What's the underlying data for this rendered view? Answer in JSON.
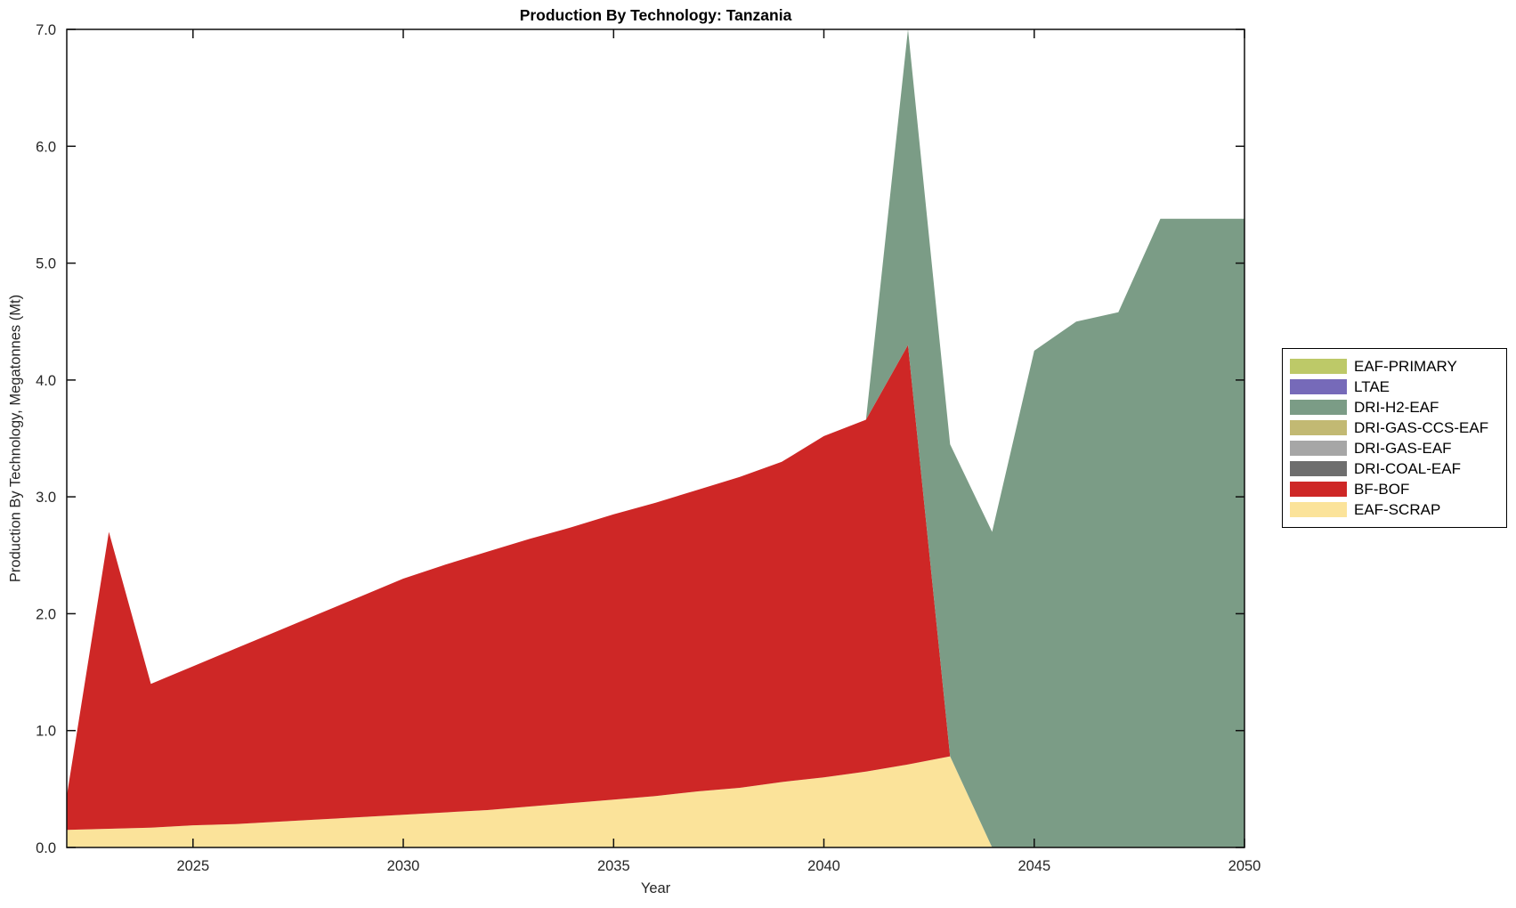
{
  "title": "Production By Technology: Tanzania",
  "axes": {
    "xlabel": "Year",
    "ylabel": "Production By Technology, Megatonnes (Mt)"
  },
  "legend": {
    "position": "right-outside",
    "items": [
      {
        "label": "EAF-PRIMARY",
        "color": "#bdc968"
      },
      {
        "label": "LTAE",
        "color": "#766ab9"
      },
      {
        "label": "DRI-H2-EAF",
        "color": "#7b9c86"
      },
      {
        "label": "DRI-GAS-CCS-EAF",
        "color": "#c2b973"
      },
      {
        "label": "DRI-GAS-EAF",
        "color": "#a6a6a6"
      },
      {
        "label": "DRI-COAL-EAF",
        "color": "#6e6e6e"
      },
      {
        "label": "BF-BOF",
        "color": "#ce2726"
      },
      {
        "label": "EAF-SCRAP",
        "color": "#fbe39a"
      }
    ]
  },
  "chart_data": {
    "type": "area",
    "stacked": true,
    "title": "Production By Technology: Tanzania",
    "xlabel": "Year",
    "ylabel": "Production By Technology, Megatonnes (Mt)",
    "xlim": [
      2022,
      2050
    ],
    "ylim": [
      0,
      7
    ],
    "grid": false,
    "x": [
      2022,
      2023,
      2024,
      2025,
      2026,
      2027,
      2028,
      2029,
      2030,
      2031,
      2032,
      2033,
      2034,
      2035,
      2036,
      2037,
      2038,
      2039,
      2040,
      2041,
      2042,
      2043,
      2044,
      2045,
      2046,
      2047,
      2048,
      2049,
      2050
    ],
    "xticks": [
      {
        "value": 2025,
        "label": "2025"
      },
      {
        "value": 2030,
        "label": "2030"
      },
      {
        "value": 2035,
        "label": "2035"
      },
      {
        "value": 2040,
        "label": "2040"
      },
      {
        "value": 2045,
        "label": "2045"
      },
      {
        "value": 2050,
        "label": "2050"
      }
    ],
    "yticks": [
      {
        "value": 0,
        "label": "0.0"
      },
      {
        "value": 1,
        "label": "1.0"
      },
      {
        "value": 2,
        "label": "2.0"
      },
      {
        "value": 3,
        "label": "3.0"
      },
      {
        "value": 4,
        "label": "4.0"
      },
      {
        "value": 5,
        "label": "5.0"
      },
      {
        "value": 6,
        "label": "6.0"
      },
      {
        "value": 7,
        "label": "7.0"
      }
    ],
    "stack_order": [
      "EAF-SCRAP",
      "BF-BOF",
      "DRI-COAL-EAF",
      "DRI-GAS-EAF",
      "DRI-GAS-CCS-EAF",
      "DRI-H2-EAF",
      "LTAE",
      "EAF-PRIMARY"
    ],
    "series": [
      {
        "name": "EAF-SCRAP",
        "color": "#fbe39a",
        "values": [
          0.15,
          0.16,
          0.17,
          0.19,
          0.2,
          0.22,
          0.24,
          0.26,
          0.28,
          0.3,
          0.32,
          0.35,
          0.38,
          0.41,
          0.44,
          0.48,
          0.51,
          0.56,
          0.6,
          0.65,
          0.71,
          0.78,
          0,
          0,
          0,
          0,
          0,
          0,
          0
        ]
      },
      {
        "name": "BF-BOF",
        "color": "#ce2726",
        "values": [
          0.29,
          2.54,
          1.23,
          1.36,
          1.5,
          1.63,
          1.76,
          1.89,
          2.02,
          2.12,
          2.21,
          2.29,
          2.36,
          2.44,
          2.51,
          2.58,
          2.66,
          2.74,
          2.92,
          3.01,
          3.59,
          0,
          0,
          0,
          0,
          0,
          0,
          0,
          0
        ]
      },
      {
        "name": "DRI-COAL-EAF",
        "color": "#6e6e6e",
        "values": [
          0,
          0,
          0,
          0,
          0,
          0,
          0,
          0,
          0,
          0,
          0,
          0,
          0,
          0,
          0,
          0,
          0,
          0,
          0,
          0,
          0,
          0,
          0,
          0,
          0,
          0,
          0,
          0,
          0
        ]
      },
      {
        "name": "DRI-GAS-EAF",
        "color": "#a6a6a6",
        "values": [
          0,
          0,
          0,
          0,
          0,
          0,
          0,
          0,
          0,
          0,
          0,
          0,
          0,
          0,
          0,
          0,
          0,
          0,
          0,
          0,
          0,
          0,
          0,
          0,
          0,
          0,
          0,
          0,
          0
        ]
      },
      {
        "name": "DRI-GAS-CCS-EAF",
        "color": "#c2b973",
        "values": [
          0,
          0,
          0,
          0,
          0,
          0,
          0,
          0,
          0,
          0,
          0,
          0,
          0,
          0,
          0,
          0,
          0,
          0,
          0,
          0,
          0,
          0,
          0,
          0,
          0,
          0,
          0,
          0,
          0
        ]
      },
      {
        "name": "DRI-H2-EAF",
        "color": "#7b9c86",
        "values": [
          0,
          0,
          0,
          0,
          0,
          0,
          0,
          0,
          0,
          0,
          0,
          0,
          0,
          0,
          0,
          0,
          0,
          0,
          0,
          0,
          2.7,
          2.67,
          2.7,
          4.25,
          4.5,
          4.58,
          5.38,
          5.38,
          5.38
        ]
      },
      {
        "name": "LTAE",
        "color": "#766ab9",
        "values": [
          0,
          0,
          0,
          0,
          0,
          0,
          0,
          0,
          0,
          0,
          0,
          0,
          0,
          0,
          0,
          0,
          0,
          0,
          0,
          0,
          0,
          0,
          0,
          0,
          0,
          0,
          0,
          0,
          0
        ]
      },
      {
        "name": "EAF-PRIMARY",
        "color": "#bdc968",
        "values": [
          0,
          0,
          0,
          0,
          0,
          0,
          0,
          0,
          0,
          0,
          0,
          0,
          0,
          0,
          0,
          0,
          0,
          0,
          0,
          0,
          0,
          0,
          0,
          0,
          0,
          0,
          0,
          0,
          0
        ]
      }
    ]
  }
}
